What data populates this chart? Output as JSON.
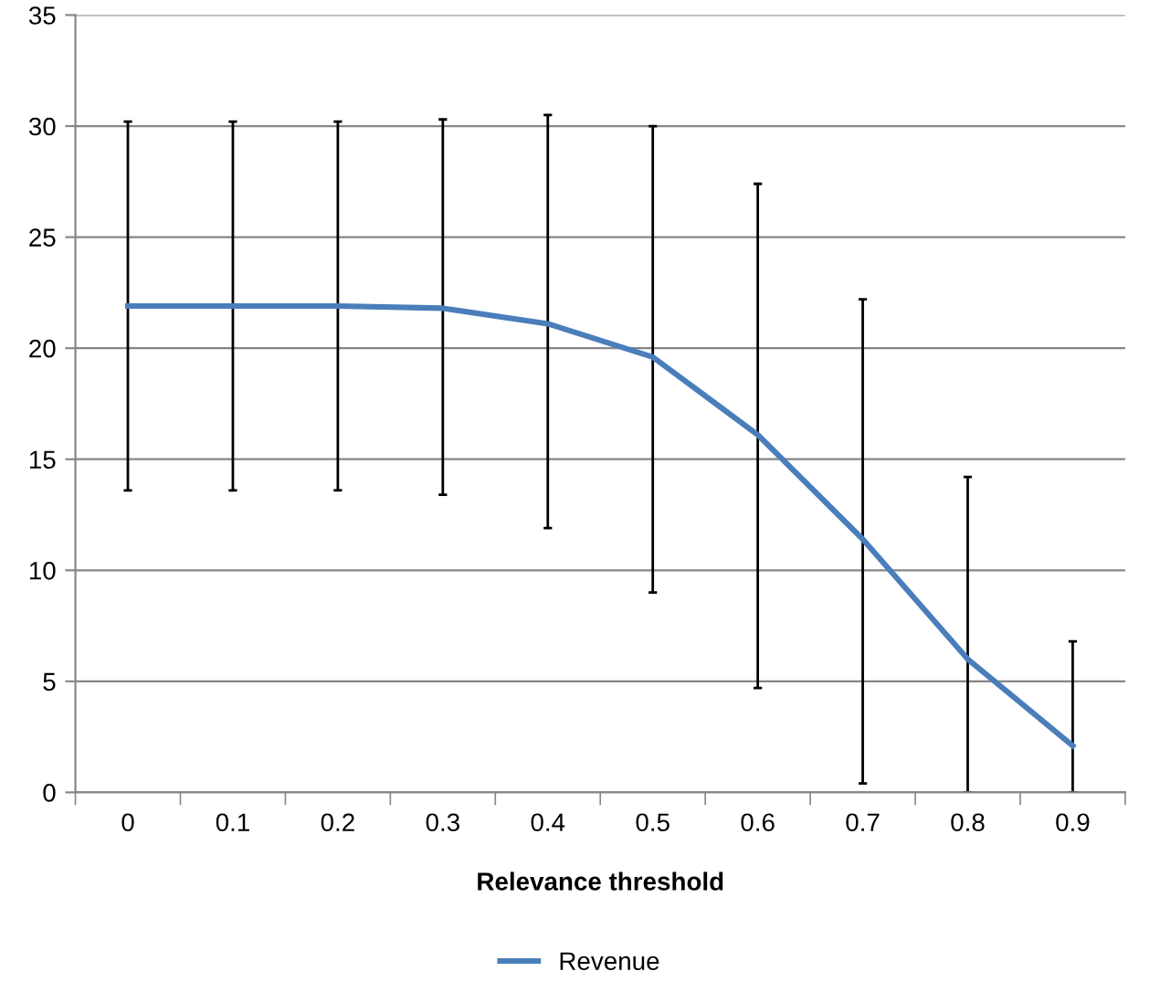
{
  "chart_data": {
    "type": "line",
    "xlabel": "Relevance threshold",
    "categories": [
      "0",
      "0.1",
      "0.2",
      "0.3",
      "0.4",
      "0.5",
      "0.6",
      "0.7",
      "0.8",
      "0.9"
    ],
    "series": [
      {
        "name": "Revenue",
        "color": "#4a7ebb",
        "values": [
          21.9,
          21.9,
          21.9,
          21.8,
          21.1,
          19.6,
          16.1,
          11.4,
          6.0,
          2.1
        ],
        "errors": [
          [
            13.6,
            30.2
          ],
          [
            13.6,
            30.2
          ],
          [
            13.6,
            30.2
          ],
          [
            13.4,
            30.3
          ],
          [
            11.9,
            30.5
          ],
          [
            9.0,
            30.0
          ],
          [
            4.7,
            27.4
          ],
          [
            0.4,
            22.2
          ],
          [
            0,
            14.2
          ],
          [
            0,
            6.8
          ]
        ]
      }
    ],
    "ylim": [
      0,
      35
    ],
    "yticks": [
      0,
      5,
      10,
      15,
      20,
      25,
      30,
      35
    ],
    "grid": "y",
    "legend": "bottom",
    "marker": "none",
    "line_style": "solid"
  }
}
